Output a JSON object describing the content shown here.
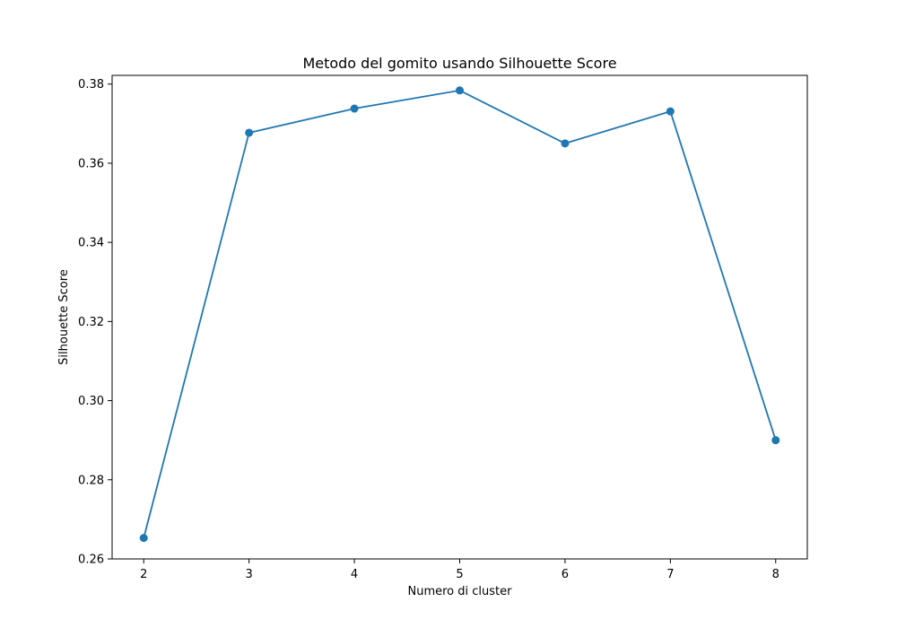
{
  "chart_data": {
    "type": "line",
    "title": "Metodo del gomito usando Silhouette Score",
    "xlabel": "Numero di cluster",
    "ylabel": "Silhouette Score",
    "x": [
      2,
      3,
      4,
      5,
      6,
      7,
      8
    ],
    "series": [
      {
        "values": [
          0.2653,
          0.3677,
          0.3738,
          0.3784,
          0.365,
          0.3731,
          0.29
        ],
        "color": "#1f77b4",
        "marker": "circle"
      }
    ],
    "xlim": [
      1.7,
      8.3
    ],
    "ylim": [
      0.26,
      0.3822
    ],
    "xticks": [
      2,
      3,
      4,
      5,
      6,
      7,
      8
    ],
    "xtick_labels": [
      "2",
      "3",
      "4",
      "5",
      "6",
      "7",
      "8"
    ],
    "yticks": [
      0.26,
      0.28,
      0.3,
      0.32,
      0.34,
      0.36,
      0.38
    ],
    "ytick_labels": [
      "0.26",
      "0.28",
      "0.30",
      "0.32",
      "0.34",
      "0.36",
      "0.38"
    ],
    "grid": false,
    "legend": false
  }
}
